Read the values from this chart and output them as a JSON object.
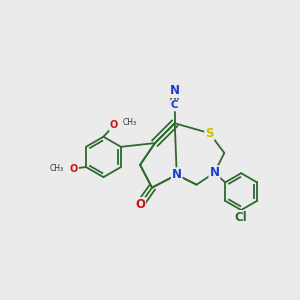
{
  "background_color": "#ebebeb",
  "bond_color": "#2d6a2d",
  "atom_colors": {
    "N": "#1a3ecf",
    "O": "#cc1111",
    "S": "#ccbb00",
    "Cl": "#2d6a2d",
    "C": "#1a3ecf"
  },
  "figsize": [
    3.0,
    3.0
  ],
  "dpi": 100
}
